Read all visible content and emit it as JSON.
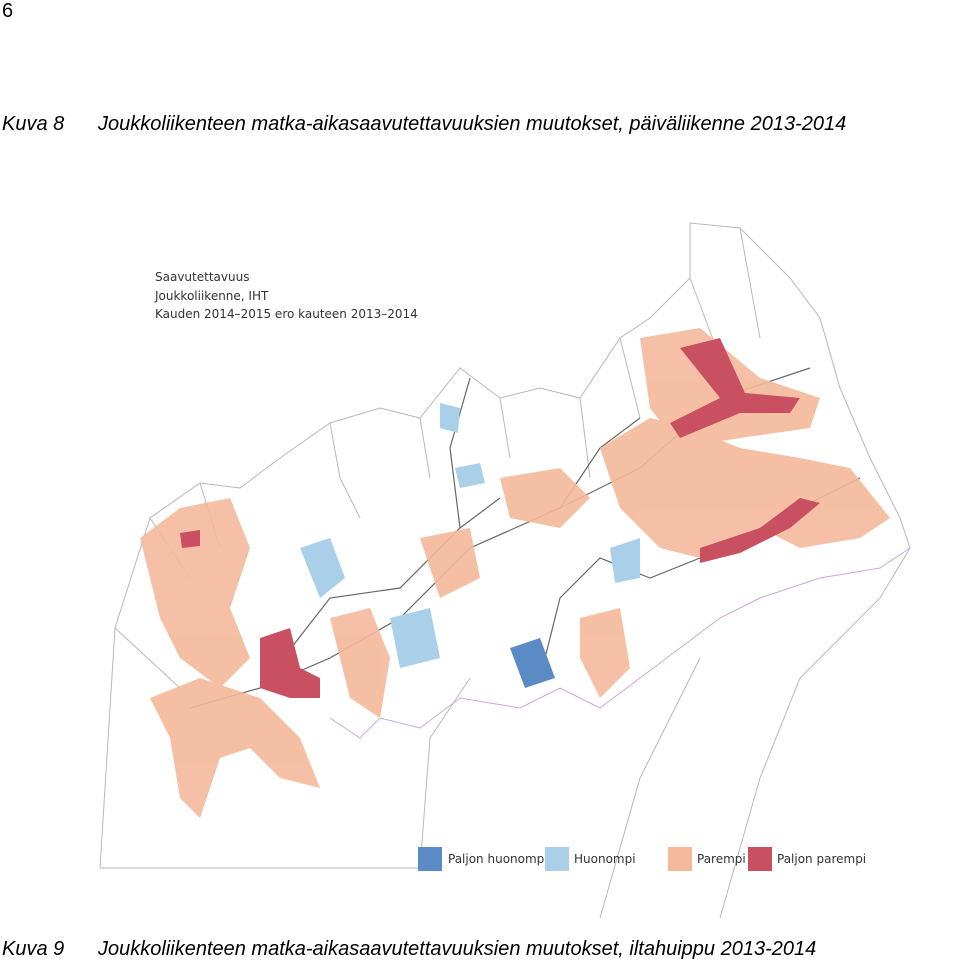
{
  "page_number": "6",
  "captions": [
    {
      "label": "Kuva 8",
      "text": "Joukkoliikenteen matka-aikasaavutettavuuksien muutokset, päiväliikenne 2013-2014"
    },
    {
      "label": "Kuva 9",
      "text": "Joukkoliikenteen matka-aikasaavutettavuuksien muutokset, iltahuippu 2013-2014"
    }
  ],
  "map": {
    "legend_title": [
      "Saavutettavuus",
      "Joukkoliikenne, IHT",
      "Kauden 2014–2015 ero kauteen 2013–2014"
    ],
    "legend": [
      "Paljon huonompi",
      "Huonompi",
      "Parempi",
      "Paljon parempi"
    ]
  }
}
